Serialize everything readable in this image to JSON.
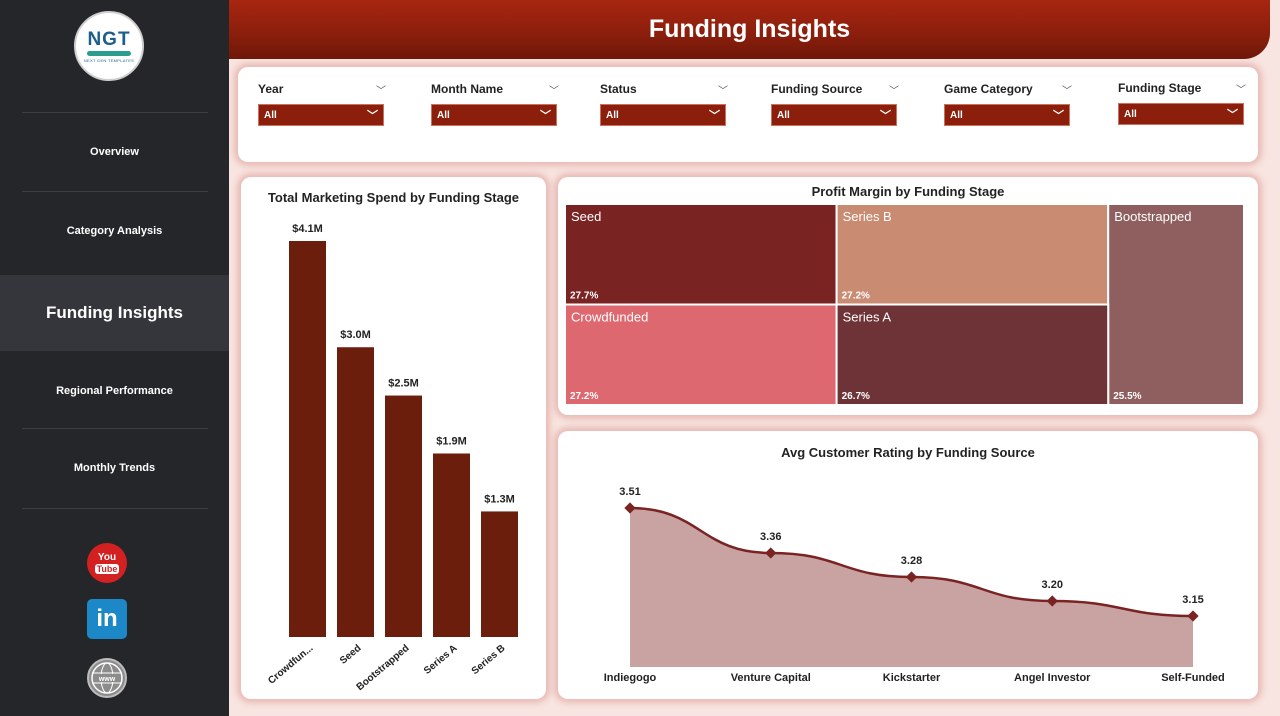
{
  "sidebar": {
    "logo": {
      "mark": "NGT",
      "sub": "NEXT GEN TEMPLATES"
    },
    "items": [
      {
        "label": "Overview"
      },
      {
        "label": "Category Analysis"
      },
      {
        "label": "Funding Insights"
      },
      {
        "label": "Regional Performance"
      },
      {
        "label": "Monthly Trends"
      }
    ],
    "social": {
      "youtube_top": "You",
      "youtube_bottom": "Tube",
      "linkedin": "in",
      "web": "www"
    }
  },
  "header": {
    "title": "Funding Insights"
  },
  "filters": [
    {
      "label": "Year",
      "value": "All"
    },
    {
      "label": "Month Name",
      "value": "All"
    },
    {
      "label": "Status",
      "value": "All"
    },
    {
      "label": "Funding Source",
      "value": "All"
    },
    {
      "label": "Game Category",
      "value": "All"
    },
    {
      "label": "Funding Stage",
      "value": "All"
    }
  ],
  "colors": {
    "accent": "#8c1f0c",
    "bar": "#6b1e0c",
    "line": "#7a2323",
    "area": "#c9a2a2"
  },
  "chart_data": [
    {
      "type": "bar",
      "title": "Total Marketing Spend by Funding Stage",
      "categories": [
        "Crowdfun...",
        "Seed",
        "Bootstrapped",
        "Series A",
        "Series B"
      ],
      "values": [
        4.1,
        3.0,
        2.5,
        1.9,
        1.3
      ],
      "labels": [
        "$4.1M",
        "$3.0M",
        "$2.5M",
        "$1.9M",
        "$1.3M"
      ],
      "unit": "$M",
      "ylim": [
        0,
        4.1
      ]
    },
    {
      "type": "treemap",
      "title": "Profit Margin by Funding Stage",
      "items": [
        {
          "name": "Seed",
          "value": 27.7,
          "label": "27.7%",
          "color": "#7a2323"
        },
        {
          "name": "Series B",
          "value": 27.2,
          "label": "27.2%",
          "color": "#c98b72"
        },
        {
          "name": "Bootstrapped",
          "value": 25.5,
          "label": "25.5%",
          "color": "#8f5f5f"
        },
        {
          "name": "Crowdfunded",
          "value": 27.2,
          "label": "27.2%",
          "color": "#de6870"
        },
        {
          "name": "Series A",
          "value": 26.7,
          "label": "26.7%",
          "color": "#6e3337"
        }
      ]
    },
    {
      "type": "area",
      "title": "Avg Customer Rating by Funding Source",
      "categories": [
        "Indiegogo",
        "Venture Capital",
        "Kickstarter",
        "Angel Investor",
        "Self-Funded"
      ],
      "values": [
        3.51,
        3.36,
        3.28,
        3.2,
        3.15
      ],
      "labels": [
        "3.51",
        "3.36",
        "3.28",
        "3.20",
        "3.15"
      ],
      "ylim": [
        2.98,
        3.51
      ]
    }
  ]
}
